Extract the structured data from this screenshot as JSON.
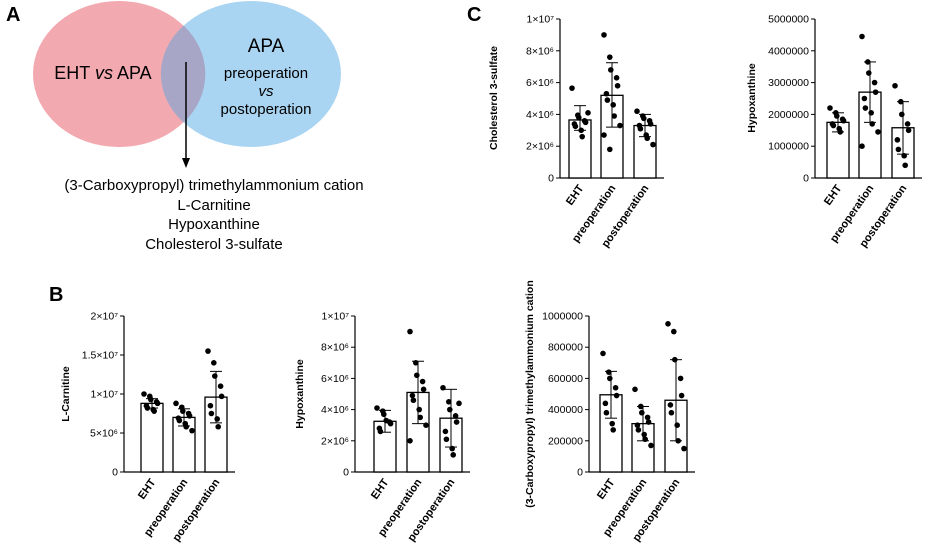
{
  "panels": {
    "a": "A",
    "b": "B",
    "c": "C"
  },
  "venn": {
    "left_label_1": "EHT ",
    "left_label_vs": "vs",
    "left_label_2": " APA",
    "right_title": "APA",
    "right_line1": "preoperation",
    "right_line2": "vs",
    "right_line3": "postoperation",
    "left_color": "#f2a9b0",
    "right_color": "#aad5f2",
    "overlap_color": "#a8a6c6",
    "results": [
      "(3-Carboxypropyl) trimethylammonium cation",
      "L-Carnitine",
      "Hypoxanthine",
      "Cholesterol 3-sulfate"
    ]
  },
  "chart_data": [
    {
      "id": "c1",
      "type": "bar",
      "ylabel": "Cholesterol 3-sulfate",
      "categories": [
        "EHT",
        "preoperation",
        "postoperation"
      ],
      "values": [
        3650000,
        5200000,
        3300000
      ],
      "errors": [
        [
          3000000,
          4550000
        ],
        [
          3200000,
          7250000
        ],
        [
          2600000,
          4000000
        ]
      ],
      "points": [
        [
          5650000,
          3950000,
          3800000,
          3600000,
          3500000,
          3400000,
          3250000,
          3000000,
          2600000,
          4100000
        ],
        [
          9000000,
          7600000,
          6800000,
          6300000,
          5800000,
          5300000,
          4900000,
          4600000,
          3900000,
          3300000,
          2700000,
          1800000
        ],
        [
          4200000,
          3900000,
          3750000,
          3600000,
          3400000,
          3300000,
          3100000,
          2700000,
          2500000,
          2100000
        ]
      ],
      "ylim": [
        0,
        10000000
      ],
      "yticks": [
        "0",
        "2×10⁶",
        "4×10⁶",
        "6×10⁶",
        "8×10⁶",
        "1×10⁷"
      ]
    },
    {
      "id": "c2",
      "type": "bar",
      "ylabel": "Hypoxanthine",
      "categories": [
        "EHT",
        "preoperation",
        "postoperation"
      ],
      "values": [
        1750000,
        2700000,
        1580000
      ],
      "errors": [
        [
          1450000,
          2050000
        ],
        [
          1750000,
          3650000
        ],
        [
          750000,
          2400000
        ]
      ],
      "points": [
        [
          2200000,
          2050000,
          1950000,
          1850000,
          1800000,
          1700000,
          1650000,
          1550000,
          1450000
        ],
        [
          4450000,
          3650000,
          3300000,
          3000000,
          2700000,
          2500000,
          2200000,
          2050000,
          1700000,
          1450000,
          1000000
        ],
        [
          2900000,
          2400000,
          2000000,
          1700000,
          1500000,
          1200000,
          900000,
          700000,
          400000
        ]
      ],
      "ylim": [
        0,
        5000000
      ],
      "yticks": [
        "0",
        "1000000",
        "2000000",
        "3000000",
        "4000000",
        "5000000"
      ]
    },
    {
      "id": "b1",
      "type": "bar",
      "ylabel": "L-Carnitine",
      "categories": [
        "EHT",
        "preoperation",
        "postoperation"
      ],
      "values": [
        8800000,
        7000000,
        9600000
      ],
      "errors": [
        [
          8200000,
          9400000
        ],
        [
          5900000,
          8100000
        ],
        [
          6300000,
          12900000
        ]
      ],
      "points": [
        [
          10000000,
          9700000,
          9300000,
          9000000,
          8800000,
          8500000,
          8200000,
          8000000,
          7800000
        ],
        [
          8800000,
          8300000,
          7800000,
          7500000,
          7200000,
          6900000,
          6600000,
          6200000,
          5800000,
          5300000
        ],
        [
          15500000,
          14000000,
          12300000,
          11000000,
          9700000,
          8500000,
          7500000,
          6800000,
          5800000
        ]
      ],
      "ylim": [
        0,
        20000000
      ],
      "yticks": [
        "0",
        "5×10⁶",
        "1×10⁷",
        "1.5×10⁷",
        "2×10⁷"
      ]
    },
    {
      "id": "b2",
      "type": "bar",
      "ylabel": "Hypoxanthine",
      "categories": [
        "EHT",
        "preoperation",
        "postoperation"
      ],
      "values": [
        3250000,
        5100000,
        3450000
      ],
      "errors": [
        [
          2550000,
          3950000
        ],
        [
          3100000,
          7100000
        ],
        [
          1600000,
          5300000
        ]
      ],
      "points": [
        [
          4100000,
          3900000,
          3700000,
          3200000,
          3100000,
          2800000,
          2600000,
          3300000
        ],
        [
          9000000,
          7000000,
          6200000,
          5800000,
          5300000,
          4900000,
          4600000,
          4000000,
          3500000,
          3000000,
          2000000
        ],
        [
          5400000,
          4500000,
          4000000,
          3600000,
          3200000,
          2600000,
          2100000,
          1500000,
          1100000,
          4400000
        ]
      ],
      "ylim": [
        0,
        10000000
      ],
      "yticks": [
        "0",
        "2×10⁶",
        "4×10⁶",
        "6×10⁶",
        "8×10⁶",
        "1×10⁷"
      ]
    },
    {
      "id": "b3",
      "type": "bar",
      "ylabel": "(3-Carboxypropyl) trimethylammonium cation",
      "categories": [
        "EHT",
        "preoperation",
        "postoperation"
      ],
      "values": [
        495000,
        310000,
        460000
      ],
      "errors": [
        [
          345000,
          645000
        ],
        [
          200000,
          420000
        ],
        [
          200000,
          720000
        ]
      ],
      "points": [
        [
          760000,
          640000,
          600000,
          540000,
          490000,
          440000,
          380000,
          310000,
          270000
        ],
        [
          530000,
          420000,
          380000,
          350000,
          320000,
          300000,
          270000,
          240000,
          210000,
          170000
        ],
        [
          950000,
          900000,
          720000,
          600000,
          490000,
          430000,
          380000,
          300000,
          200000,
          150000
        ]
      ],
      "ylim": [
        0,
        1000000
      ],
      "yticks": [
        "0",
        "200000",
        "400000",
        "600000",
        "800000",
        "1000000"
      ]
    }
  ]
}
